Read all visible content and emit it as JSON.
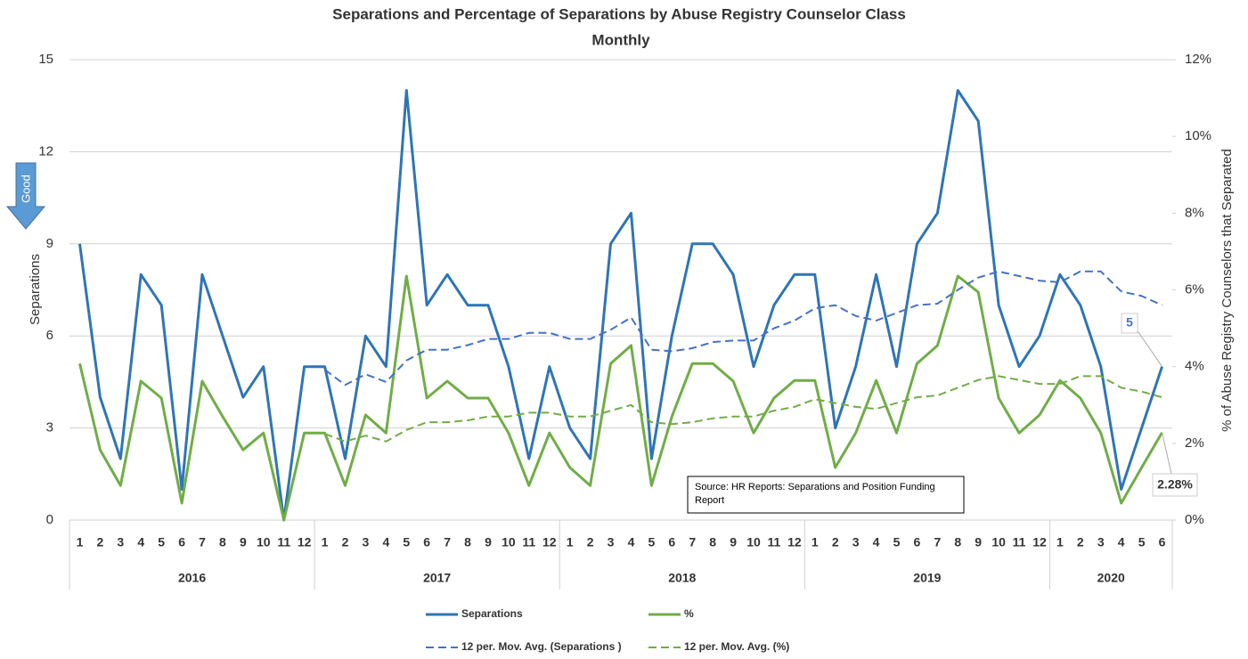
{
  "chart_data": {
    "type": "line",
    "title": "Separations and Percentage of Separations by Abuse Registry Counselor Class",
    "subtitle": "Monthly",
    "y_label": "Separations",
    "y2_label": "% of Abuse Registry Counselors that Separated",
    "annotations": {
      "arrow": "Good",
      "source": "Source: HR Reports: Separations and Position Funding Report"
    },
    "categories": [
      "1",
      "2",
      "3",
      "4",
      "5",
      "6",
      "7",
      "8",
      "9",
      "10",
      "11",
      "12",
      "1",
      "2",
      "3",
      "4",
      "5",
      "6",
      "7",
      "8",
      "9",
      "10",
      "11",
      "12",
      "1",
      "2",
      "3",
      "4",
      "5",
      "6",
      "7",
      "8",
      "9",
      "10",
      "11",
      "12",
      "1",
      "2",
      "3",
      "4",
      "5",
      "6",
      "7",
      "8",
      "9",
      "10",
      "11",
      "12",
      "1",
      "2",
      "3",
      "4",
      "5",
      "6"
    ],
    "years": [
      "2016",
      "2017",
      "2018",
      "2019",
      "2020"
    ],
    "ylim": [
      0,
      15
    ],
    "yticks": [
      0,
      3,
      6,
      9,
      12,
      15
    ],
    "y2lim": [
      0,
      12
    ],
    "y2ticks": [
      {
        "value": 0,
        "label": "0%"
      },
      {
        "value": 2,
        "label": "2%"
      },
      {
        "value": 4,
        "label": "4%"
      },
      {
        "value": 6,
        "label": "6%"
      },
      {
        "value": 8,
        "label": "8%"
      },
      {
        "value": 10,
        "label": "10%"
      },
      {
        "value": 12,
        "label": "12%"
      }
    ],
    "grid": true,
    "series": [
      {
        "name": "Separations",
        "color": "#2e75b6",
        "dashed": false,
        "values": [
          9,
          4,
          2,
          8,
          7,
          1,
          8,
          6,
          4,
          5,
          0,
          5,
          5,
          2,
          6,
          5,
          14,
          7,
          8,
          7,
          7,
          5,
          2,
          5,
          3,
          2,
          9,
          10,
          2,
          6,
          9,
          9,
          8,
          5,
          7,
          8,
          8,
          3,
          5,
          8,
          5,
          9,
          10,
          14,
          13,
          7,
          5,
          6,
          8,
          7,
          5,
          1,
          3,
          5
        ]
      },
      {
        "name": "%",
        "color": "#70ad47",
        "axis": "y2",
        "dashed": false,
        "values": [
          4.08,
          1.83,
          0.9,
          3.62,
          3.18,
          0.44,
          3.62,
          2.7,
          1.83,
          2.27,
          0,
          2.27,
          2.27,
          0.9,
          2.74,
          2.27,
          6.36,
          3.18,
          3.62,
          3.18,
          3.18,
          2.27,
          0.9,
          2.27,
          1.37,
          0.9,
          4.08,
          4.55,
          0.9,
          2.7,
          4.08,
          4.08,
          3.62,
          2.27,
          3.18,
          3.64,
          3.64,
          1.37,
          2.27,
          3.64,
          2.27,
          4.08,
          4.55,
          6.36,
          5.94,
          3.18,
          2.27,
          2.74,
          3.64,
          3.18,
          2.27,
          0.44,
          1.37,
          2.28
        ],
        "value_labels": [
          null,
          null,
          null,
          null,
          null,
          null,
          null,
          null,
          null,
          null,
          null,
          null,
          null,
          null,
          null,
          null,
          null,
          null,
          null,
          null,
          null,
          null,
          null,
          null,
          null,
          null,
          null,
          null,
          null,
          null,
          null,
          null,
          null,
          null,
          null,
          null,
          null,
          null,
          null,
          null,
          null,
          null,
          null,
          null,
          null,
          null,
          null,
          null,
          null,
          null,
          null,
          null,
          null,
          "2.28%"
        ]
      },
      {
        "name": "12 per. Mov. Avg. (Separations )",
        "color": "#4472c4",
        "dashed": true,
        "values": [
          null,
          null,
          null,
          null,
          null,
          null,
          null,
          null,
          null,
          null,
          null,
          null,
          4.9,
          4.4,
          4.75,
          4.5,
          5.2,
          5.55,
          5.55,
          5.7,
          5.9,
          5.9,
          6.1,
          6.1,
          5.9,
          5.9,
          6.2,
          6.6,
          5.55,
          5.5,
          5.6,
          5.8,
          5.85,
          5.85,
          6.25,
          6.5,
          6.9,
          7.0,
          6.65,
          6.5,
          6.75,
          7.0,
          7.05,
          7.5,
          7.9,
          8.1,
          7.95,
          7.8,
          7.75,
          8.1,
          8.1,
          7.45,
          7.3,
          7.0
        ]
      },
      {
        "name": "12 per. Mov. Avg. (%)",
        "color": "#70ad47",
        "axis": "y2",
        "dashed": true,
        "values": [
          null,
          null,
          null,
          null,
          null,
          null,
          null,
          null,
          null,
          null,
          null,
          null,
          2.25,
          2.05,
          2.2,
          2.05,
          2.35,
          2.55,
          2.55,
          2.6,
          2.7,
          2.7,
          2.8,
          2.8,
          2.7,
          2.7,
          2.85,
          3.0,
          2.55,
          2.5,
          2.55,
          2.65,
          2.7,
          2.7,
          2.85,
          2.95,
          3.15,
          3.05,
          2.95,
          2.9,
          3.05,
          3.2,
          3.25,
          3.45,
          3.65,
          3.75,
          3.65,
          3.55,
          3.55,
          3.75,
          3.75,
          3.45,
          3.35,
          3.2
        ]
      }
    ]
  }
}
